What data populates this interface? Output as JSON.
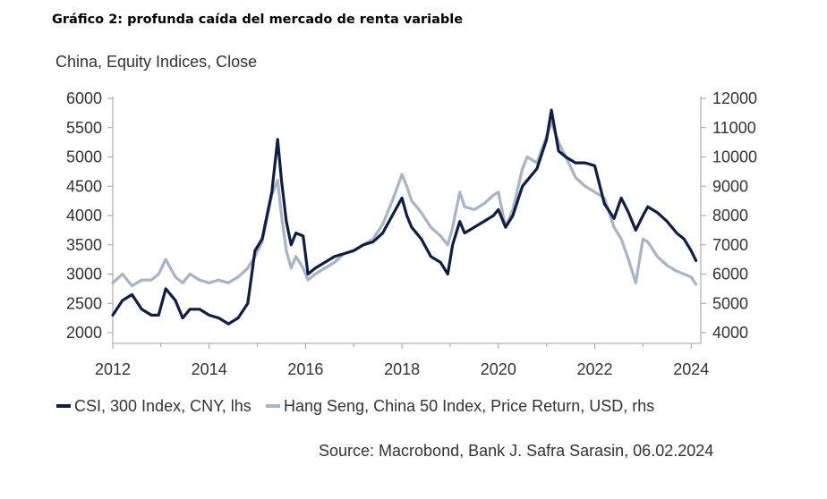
{
  "heading": "Gráfico 2: profunda caída del mercado de renta variable",
  "chart_data": {
    "type": "line",
    "title": "China, Equity Indices, Close",
    "source": "Source:  Macrobond, Bank J. Safra Sarasin, 06.02.2024",
    "x_ticks": [
      "2012",
      "2014",
      "2016",
      "2018",
      "2020",
      "2022",
      "2024"
    ],
    "xlim": [
      2012,
      2024.2
    ],
    "y_left": {
      "ylim": [
        2000,
        6000
      ],
      "ticks": [
        "2000",
        "2500",
        "3000",
        "3500",
        "4000",
        "4500",
        "5000",
        "5500",
        "6000"
      ]
    },
    "y_right": {
      "ylim": [
        4000,
        12000
      ],
      "ticks": [
        "4000",
        "5000",
        "6000",
        "7000",
        "8000",
        "9000",
        "10000",
        "11000",
        "12000"
      ]
    },
    "grid": false,
    "legend_position": "bottom",
    "series": [
      {
        "name": "CSI, 300 Index, CNY, lhs",
        "axis": "left",
        "color": "#0f1e45",
        "x": [
          2012.0,
          2012.2,
          2012.4,
          2012.6,
          2012.8,
          2012.95,
          2013.1,
          2013.3,
          2013.45,
          2013.6,
          2013.8,
          2014.0,
          2014.2,
          2014.4,
          2014.6,
          2014.8,
          2014.95,
          2015.1,
          2015.3,
          2015.42,
          2015.5,
          2015.6,
          2015.7,
          2015.8,
          2015.95,
          2016.05,
          2016.2,
          2016.4,
          2016.6,
          2016.8,
          2017.0,
          2017.2,
          2017.4,
          2017.6,
          2017.8,
          2018.0,
          2018.1,
          2018.2,
          2018.4,
          2018.6,
          2018.8,
          2018.95,
          2019.05,
          2019.2,
          2019.3,
          2019.5,
          2019.7,
          2019.9,
          2020.0,
          2020.15,
          2020.3,
          2020.5,
          2020.6,
          2020.8,
          2021.0,
          2021.1,
          2021.25,
          2021.4,
          2021.6,
          2021.8,
          2022.0,
          2022.2,
          2022.4,
          2022.55,
          2022.7,
          2022.85,
          2023.0,
          2023.1,
          2023.3,
          2023.5,
          2023.7,
          2023.85,
          2024.0,
          2024.1
        ],
        "values": [
          2300,
          2550,
          2650,
          2400,
          2300,
          2300,
          2750,
          2550,
          2250,
          2400,
          2400,
          2300,
          2250,
          2150,
          2250,
          2500,
          3400,
          3600,
          4400,
          5300,
          4600,
          3900,
          3500,
          3700,
          3650,
          3000,
          3100,
          3200,
          3300,
          3350,
          3400,
          3500,
          3550,
          3700,
          4000,
          4300,
          4000,
          3800,
          3600,
          3300,
          3200,
          3000,
          3500,
          3900,
          3700,
          3800,
          3900,
          4000,
          4100,
          3800,
          4000,
          4500,
          4600,
          4800,
          5300,
          5800,
          5100,
          5000,
          4900,
          4900,
          4850,
          4200,
          3950,
          4300,
          4050,
          3750,
          4000,
          4150,
          4050,
          3900,
          3700,
          3600,
          3400,
          3230
        ]
      },
      {
        "name": "Hang Seng, China 50 Index, Price Return, USD, rhs",
        "axis": "right",
        "color": "#a8b3c6",
        "x": [
          2012.0,
          2012.2,
          2012.4,
          2012.6,
          2012.8,
          2012.95,
          2013.1,
          2013.3,
          2013.45,
          2013.6,
          2013.8,
          2014.0,
          2014.2,
          2014.4,
          2014.6,
          2014.8,
          2014.95,
          2015.1,
          2015.3,
          2015.42,
          2015.5,
          2015.6,
          2015.7,
          2015.8,
          2015.95,
          2016.05,
          2016.2,
          2016.4,
          2016.6,
          2016.8,
          2017.0,
          2017.2,
          2017.4,
          2017.6,
          2017.8,
          2018.0,
          2018.1,
          2018.2,
          2018.4,
          2018.6,
          2018.8,
          2018.95,
          2019.05,
          2019.2,
          2019.3,
          2019.5,
          2019.7,
          2019.9,
          2020.0,
          2020.15,
          2020.3,
          2020.5,
          2020.6,
          2020.8,
          2021.0,
          2021.1,
          2021.25,
          2021.4,
          2021.6,
          2021.8,
          2022.0,
          2022.2,
          2022.4,
          2022.55,
          2022.7,
          2022.85,
          2023.0,
          2023.1,
          2023.3,
          2023.5,
          2023.7,
          2023.85,
          2024.0,
          2024.1
        ],
        "values": [
          5700,
          6000,
          5600,
          5800,
          5800,
          6000,
          6500,
          5900,
          5700,
          6000,
          5800,
          5700,
          5800,
          5700,
          5900,
          6200,
          6600,
          7100,
          8700,
          9200,
          8000,
          6800,
          6200,
          6600,
          6200,
          5800,
          6000,
          6200,
          6400,
          6700,
          6800,
          7000,
          7200,
          7700,
          8500,
          9400,
          9000,
          8500,
          8100,
          7600,
          7300,
          7000,
          7600,
          8800,
          8300,
          8200,
          8400,
          8700,
          8800,
          7600,
          8200,
          9600,
          10000,
          9800,
          10700,
          11200,
          10500,
          10000,
          9300,
          9000,
          8800,
          8600,
          7600,
          7200,
          6500,
          5700,
          7200,
          7100,
          6600,
          6300,
          6100,
          6000,
          5900,
          5650
        ]
      }
    ]
  }
}
